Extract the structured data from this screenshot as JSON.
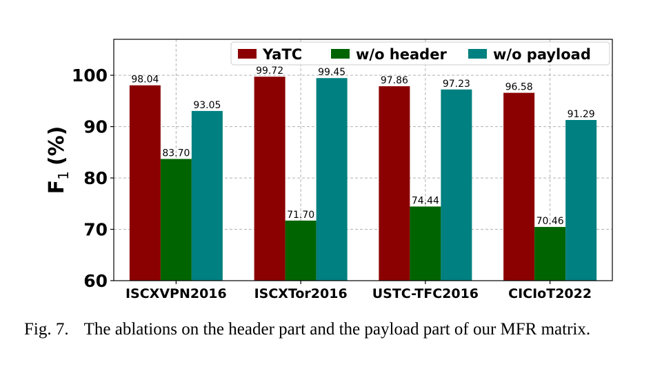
{
  "chart_data": {
    "type": "bar",
    "ylabel": "F",
    "ylabel_sub": "1",
    "ylabel_suffix": "(%)",
    "ylim": [
      60,
      107
    ],
    "yticks": [
      60,
      70,
      80,
      90,
      100
    ],
    "categories": [
      "ISCXVPN2016",
      "ISCXTor2016",
      "USTC-TFC2016",
      "CICIoT2022"
    ],
    "series": [
      {
        "name": "YaTC",
        "color": "#8b0000",
        "values": [
          98.04,
          99.72,
          97.86,
          96.58
        ],
        "labels": [
          "98.04",
          "99.72",
          "97.86",
          "96.58"
        ]
      },
      {
        "name": "w/o header",
        "color": "#006400",
        "values": [
          83.7,
          71.7,
          74.44,
          70.46
        ],
        "labels": [
          "83.70",
          "71.70",
          "74.44",
          "70.46"
        ]
      },
      {
        "name": "w/o payload",
        "color": "#008080",
        "values": [
          93.05,
          99.45,
          97.23,
          91.29
        ],
        "labels": [
          "93.05",
          "99.45",
          "97.23",
          "91.29"
        ]
      }
    ],
    "grid": true,
    "grid_style": "dashed",
    "legend_position": "top-right"
  },
  "caption": {
    "figure_number": "Fig. 7.",
    "text": "The ablations on the header part and the payload part of our MFR matrix."
  }
}
